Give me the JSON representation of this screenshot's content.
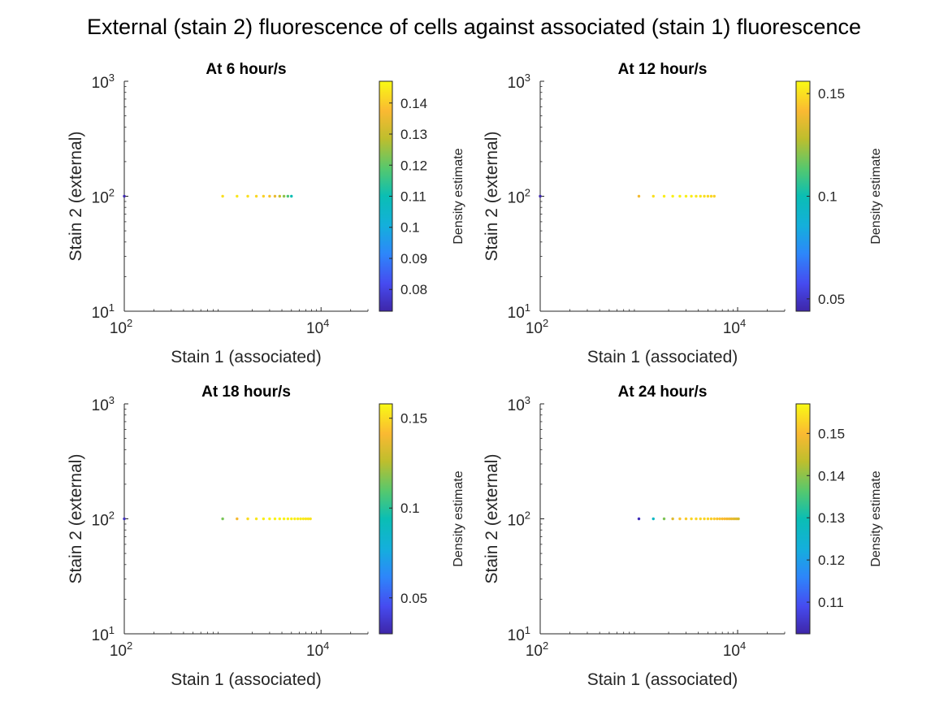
{
  "figure": {
    "title": "External (stain 2) fluorescence of cells against associated (stain 1) fluorescence"
  },
  "chart_data": [
    {
      "type": "scatter",
      "title": "At 6 hour/s",
      "xlabel": "Stain 1 (associated)",
      "ylabel": "Stain 2 (external)",
      "xscale": "log",
      "yscale": "log",
      "xlim": [
        100,
        30000
      ],
      "ylim": [
        10,
        1000
      ],
      "xticks": [
        {
          "base": "10",
          "exp": "2",
          "value": 100
        },
        {
          "base": "10",
          "exp": "4",
          "value": 10000
        }
      ],
      "yticks": [
        {
          "base": "10",
          "exp": "1",
          "value": 10
        },
        {
          "base": "10",
          "exp": "2",
          "value": 100
        },
        {
          "base": "10",
          "exp": "3",
          "value": 1000
        }
      ],
      "grid": false,
      "colorbar": {
        "label": "Density estimate",
        "range": [
          0.073,
          0.147
        ],
        "ticks": [
          "0.08",
          "0.09",
          "0.1",
          "0.11",
          "0.12",
          "0.13",
          "0.14"
        ],
        "tick_values": [
          0.08,
          0.09,
          0.1,
          0.11,
          0.12,
          0.13,
          0.14
        ]
      },
      "points": [
        {
          "x": 1000,
          "y": 100,
          "density": 0.143
        },
        {
          "x": 1400,
          "y": 100,
          "density": 0.144
        },
        {
          "x": 1800,
          "y": 100,
          "density": 0.143
        },
        {
          "x": 2200,
          "y": 100,
          "density": 0.142
        },
        {
          "x": 2600,
          "y": 100,
          "density": 0.141
        },
        {
          "x": 3000,
          "y": 100,
          "density": 0.139
        },
        {
          "x": 3400,
          "y": 100,
          "density": 0.135
        },
        {
          "x": 3800,
          "y": 100,
          "density": 0.13
        },
        {
          "x": 4200,
          "y": 100,
          "density": 0.124
        },
        {
          "x": 4600,
          "y": 100,
          "density": 0.118
        },
        {
          "x": 5000,
          "y": 100,
          "density": 0.11
        },
        {
          "x": 100,
          "y": 100,
          "density": 0.074
        }
      ]
    },
    {
      "type": "scatter",
      "title": "At 12 hour/s",
      "xlabel": "Stain 1 (associated)",
      "ylabel": "Stain 2 (external)",
      "xscale": "log",
      "yscale": "log",
      "xlim": [
        100,
        30000
      ],
      "ylim": [
        10,
        1000
      ],
      "xticks": [
        {
          "base": "10",
          "exp": "2",
          "value": 100
        },
        {
          "base": "10",
          "exp": "4",
          "value": 10000
        }
      ],
      "yticks": [
        {
          "base": "10",
          "exp": "1",
          "value": 10
        },
        {
          "base": "10",
          "exp": "2",
          "value": 100
        },
        {
          "base": "10",
          "exp": "3",
          "value": 1000
        }
      ],
      "grid": false,
      "colorbar": {
        "label": "Density estimate",
        "range": [
          0.044,
          0.156
        ],
        "ticks": [
          "0.05",
          "0.1",
          "0.15"
        ],
        "tick_values": [
          0.05,
          0.1,
          0.15
        ]
      },
      "points": [
        {
          "x": 100,
          "y": 100,
          "density": 0.045
        },
        {
          "x": 1000,
          "y": 100,
          "density": 0.14
        },
        {
          "x": 1400,
          "y": 100,
          "density": 0.15
        },
        {
          "x": 1800,
          "y": 100,
          "density": 0.153
        },
        {
          "x": 2200,
          "y": 100,
          "density": 0.154
        },
        {
          "x": 2600,
          "y": 100,
          "density": 0.154
        },
        {
          "x": 3000,
          "y": 100,
          "density": 0.154
        },
        {
          "x": 3400,
          "y": 100,
          "density": 0.153
        },
        {
          "x": 3800,
          "y": 100,
          "density": 0.152
        },
        {
          "x": 4200,
          "y": 100,
          "density": 0.151
        },
        {
          "x": 4600,
          "y": 100,
          "density": 0.15
        },
        {
          "x": 5000,
          "y": 100,
          "density": 0.149
        },
        {
          "x": 5400,
          "y": 100,
          "density": 0.148
        },
        {
          "x": 5800,
          "y": 100,
          "density": 0.147
        }
      ]
    },
    {
      "type": "scatter",
      "title": "At 18 hour/s",
      "xlabel": "Stain 1 (associated)",
      "ylabel": "Stain 2 (external)",
      "xscale": "log",
      "yscale": "log",
      "xlim": [
        100,
        30000
      ],
      "ylim": [
        10,
        1000
      ],
      "xticks": [
        {
          "base": "10",
          "exp": "2",
          "value": 100
        },
        {
          "base": "10",
          "exp": "4",
          "value": 10000
        }
      ],
      "yticks": [
        {
          "base": "10",
          "exp": "1",
          "value": 10
        },
        {
          "base": "10",
          "exp": "2",
          "value": 100
        },
        {
          "base": "10",
          "exp": "3",
          "value": 1000
        }
      ],
      "grid": false,
      "colorbar": {
        "label": "Density estimate",
        "range": [
          0.03,
          0.158
        ],
        "ticks": [
          "0.05",
          "0.1",
          "0.15"
        ],
        "tick_values": [
          0.05,
          0.1,
          0.15
        ]
      },
      "points": [
        {
          "x": 100,
          "y": 100,
          "density": 0.035
        },
        {
          "x": 1000,
          "y": 100,
          "density": 0.115
        },
        {
          "x": 1400,
          "y": 100,
          "density": 0.14
        },
        {
          "x": 1800,
          "y": 100,
          "density": 0.15
        },
        {
          "x": 2200,
          "y": 100,
          "density": 0.153
        },
        {
          "x": 2600,
          "y": 100,
          "density": 0.155
        },
        {
          "x": 3000,
          "y": 100,
          "density": 0.156
        },
        {
          "x": 3400,
          "y": 100,
          "density": 0.156
        },
        {
          "x": 3800,
          "y": 100,
          "density": 0.156
        },
        {
          "x": 4200,
          "y": 100,
          "density": 0.156
        },
        {
          "x": 4600,
          "y": 100,
          "density": 0.156
        },
        {
          "x": 5000,
          "y": 100,
          "density": 0.155
        },
        {
          "x": 5400,
          "y": 100,
          "density": 0.155
        },
        {
          "x": 5800,
          "y": 100,
          "density": 0.155
        },
        {
          "x": 6200,
          "y": 100,
          "density": 0.154
        },
        {
          "x": 6600,
          "y": 100,
          "density": 0.154
        },
        {
          "x": 7000,
          "y": 100,
          "density": 0.153
        },
        {
          "x": 7400,
          "y": 100,
          "density": 0.153
        },
        {
          "x": 7800,
          "y": 100,
          "density": 0.152
        }
      ]
    },
    {
      "type": "scatter",
      "title": "At 24 hour/s",
      "xlabel": "Stain 1 (associated)",
      "ylabel": "Stain 2 (external)",
      "xscale": "log",
      "yscale": "log",
      "xlim": [
        100,
        30000
      ],
      "ylim": [
        10,
        1000
      ],
      "xticks": [
        {
          "base": "10",
          "exp": "2",
          "value": 100
        },
        {
          "base": "10",
          "exp": "4",
          "value": 10000
        }
      ],
      "yticks": [
        {
          "base": "10",
          "exp": "1",
          "value": 10
        },
        {
          "base": "10",
          "exp": "2",
          "value": 100
        },
        {
          "base": "10",
          "exp": "3",
          "value": 1000
        }
      ],
      "grid": false,
      "colorbar": {
        "label": "Density estimate",
        "range": [
          0.1025,
          0.157
        ],
        "ticks": [
          "0.11",
          "0.12",
          "0.13",
          "0.14",
          "0.15"
        ],
        "tick_values": [
          0.11,
          0.12,
          0.13,
          0.14,
          0.15
        ]
      },
      "points": [
        {
          "x": 1000,
          "y": 100,
          "density": 0.104
        },
        {
          "x": 1400,
          "y": 100,
          "density": 0.127
        },
        {
          "x": 1800,
          "y": 100,
          "density": 0.139
        },
        {
          "x": 2200,
          "y": 100,
          "density": 0.147
        },
        {
          "x": 2600,
          "y": 100,
          "density": 0.151
        },
        {
          "x": 3000,
          "y": 100,
          "density": 0.152
        },
        {
          "x": 3400,
          "y": 100,
          "density": 0.153
        },
        {
          "x": 3800,
          "y": 100,
          "density": 0.153
        },
        {
          "x": 4200,
          "y": 100,
          "density": 0.153
        },
        {
          "x": 4600,
          "y": 100,
          "density": 0.153
        },
        {
          "x": 5000,
          "y": 100,
          "density": 0.153
        },
        {
          "x": 5400,
          "y": 100,
          "density": 0.152
        },
        {
          "x": 5800,
          "y": 100,
          "density": 0.152
        },
        {
          "x": 6200,
          "y": 100,
          "density": 0.151
        },
        {
          "x": 6600,
          "y": 100,
          "density": 0.151
        },
        {
          "x": 7000,
          "y": 100,
          "density": 0.15
        },
        {
          "x": 7400,
          "y": 100,
          "density": 0.15
        },
        {
          "x": 7800,
          "y": 100,
          "density": 0.149
        },
        {
          "x": 8200,
          "y": 100,
          "density": 0.149
        },
        {
          "x": 8600,
          "y": 100,
          "density": 0.148
        },
        {
          "x": 9000,
          "y": 100,
          "density": 0.148
        },
        {
          "x": 9400,
          "y": 100,
          "density": 0.147
        },
        {
          "x": 9800,
          "y": 100,
          "density": 0.147
        },
        {
          "x": 10200,
          "y": 100,
          "density": 0.146
        }
      ]
    }
  ]
}
